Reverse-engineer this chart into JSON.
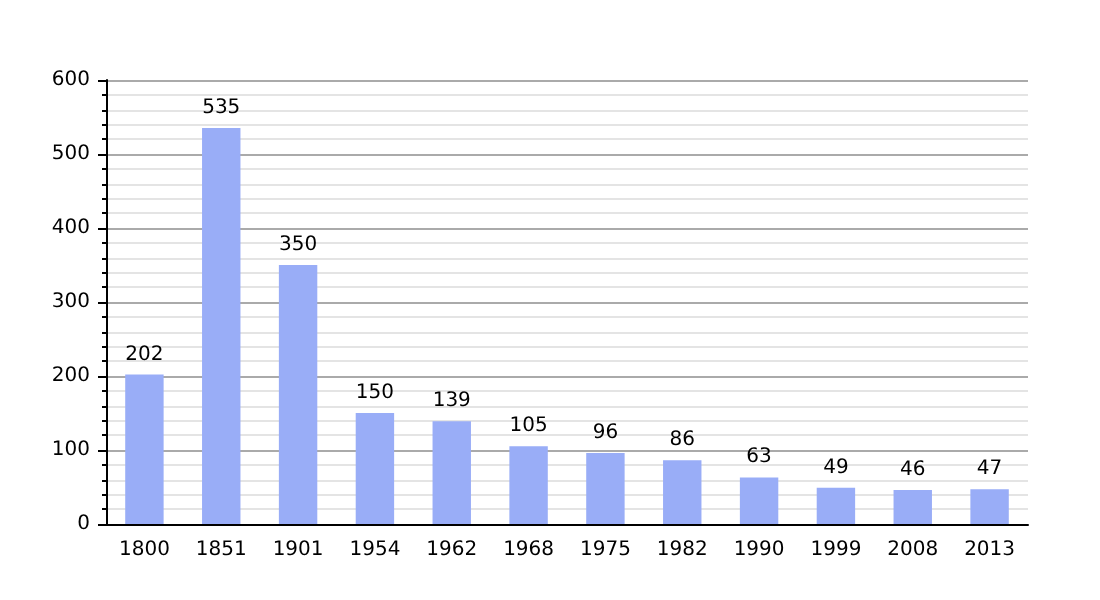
{
  "chart_data": {
    "type": "bar",
    "categories": [
      "1800",
      "1851",
      "1901",
      "1954",
      "1962",
      "1968",
      "1975",
      "1982",
      "1990",
      "1999",
      "2008",
      "2013"
    ],
    "values": [
      202,
      535,
      350,
      150,
      139,
      105,
      96,
      86,
      63,
      49,
      46,
      47
    ],
    "color": "#99adf7",
    "ylim": [
      0,
      600
    ],
    "yticks": [
      0,
      100,
      200,
      300,
      400,
      500,
      600
    ],
    "grid": "y",
    "data_labels": true
  }
}
